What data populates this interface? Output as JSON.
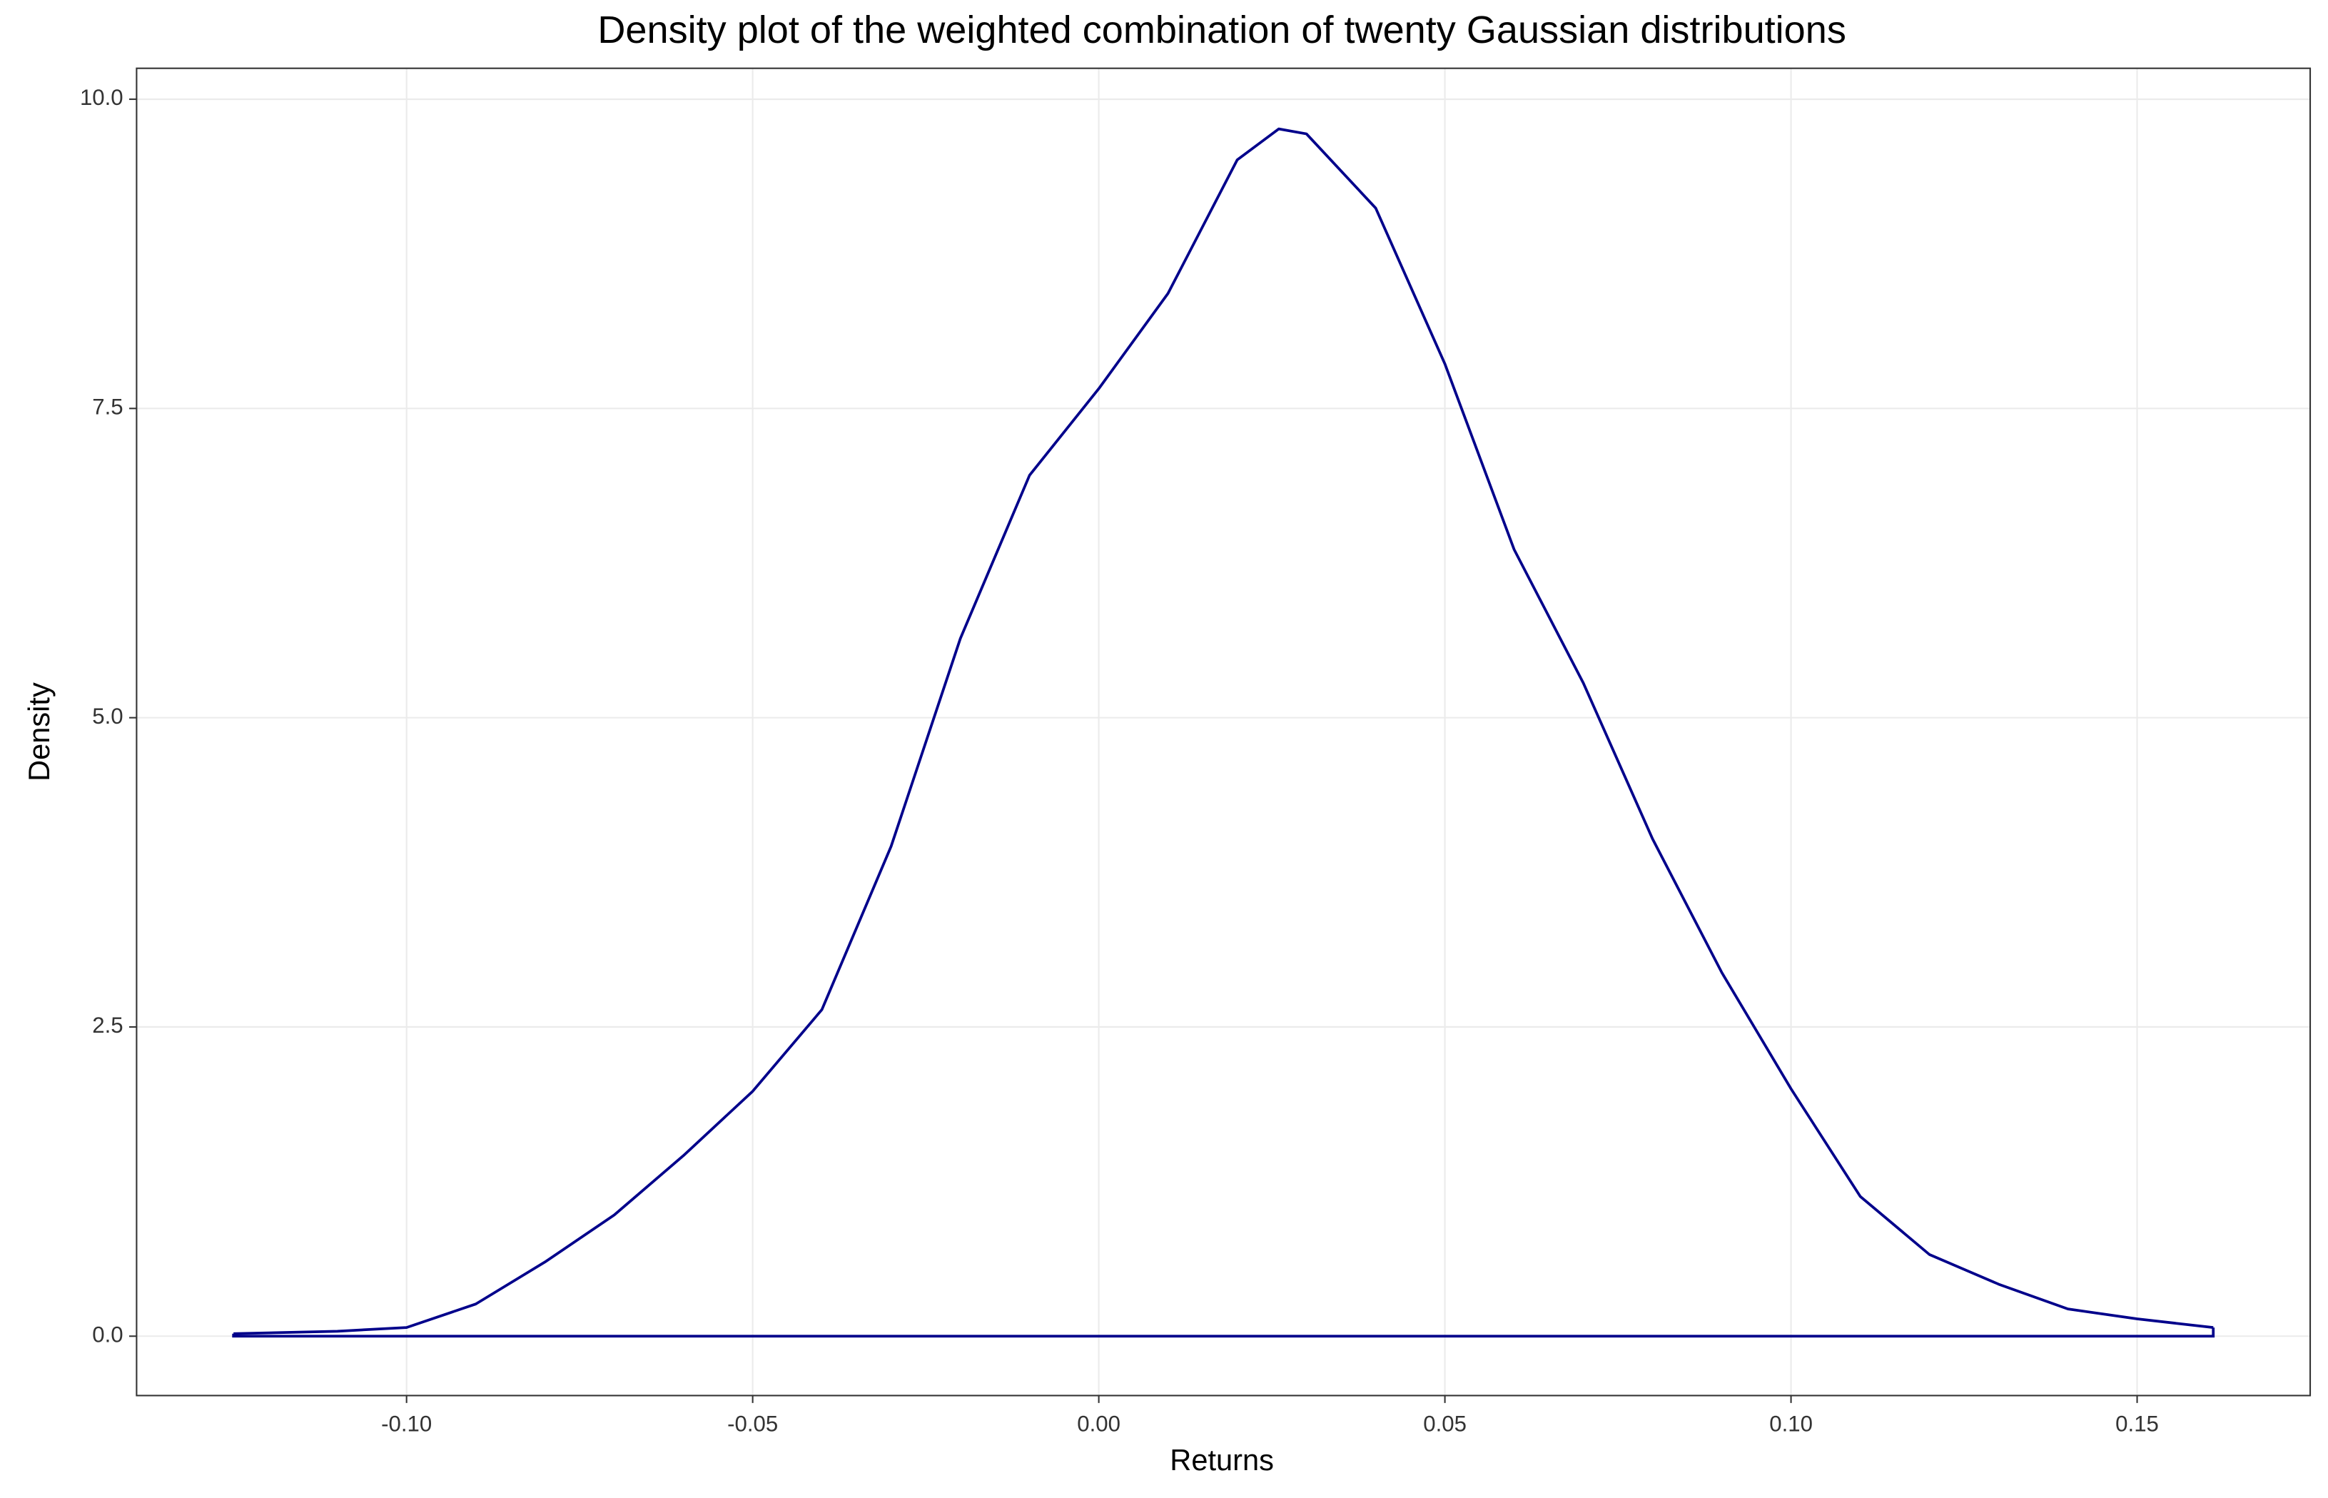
{
  "chart_data": {
    "type": "density",
    "title": "Density plot of the weighted combination of twenty Gaussian distributions",
    "x_label": "Returns",
    "y_label": "Density",
    "x": [
      -0.125,
      -0.11,
      -0.1,
      -0.09,
      -0.08,
      -0.07,
      -0.06,
      -0.05,
      -0.04,
      -0.03,
      -0.02,
      -0.01,
      0.0,
      0.01,
      0.02,
      0.026,
      0.03,
      0.04,
      0.05,
      0.06,
      0.07,
      0.08,
      0.09,
      0.1,
      0.11,
      0.12,
      0.13,
      0.14,
      0.15,
      0.161
    ],
    "values": [
      0.02,
      0.04,
      0.07,
      0.26,
      0.6,
      0.98,
      1.46,
      1.98,
      2.64,
      3.96,
      5.64,
      6.96,
      7.66,
      8.43,
      9.51,
      9.76,
      9.72,
      9.12,
      7.86,
      6.36,
      5.28,
      4.02,
      2.94,
      2.0,
      1.13,
      0.66,
      0.42,
      0.22,
      0.14,
      0.07
    ],
    "color": "#00008b",
    "xlim": [
      -0.139,
      0.175
    ],
    "ylim": [
      -0.48,
      10.25
    ],
    "xticks": [
      {
        "value": -0.1,
        "label": "-0.10"
      },
      -0.05,
      {
        "value": 0,
        "label": "0.00"
      },
      0.05,
      {
        "value": 0.1,
        "label": "0.10"
      },
      0.15
    ],
    "yticks": [
      {
        "value": 0,
        "label": "0.0"
      },
      2.5,
      {
        "value": 5,
        "label": "5.0"
      },
      7.5,
      {
        "value": 10,
        "label": "10.0"
      }
    ],
    "grid": true
  }
}
